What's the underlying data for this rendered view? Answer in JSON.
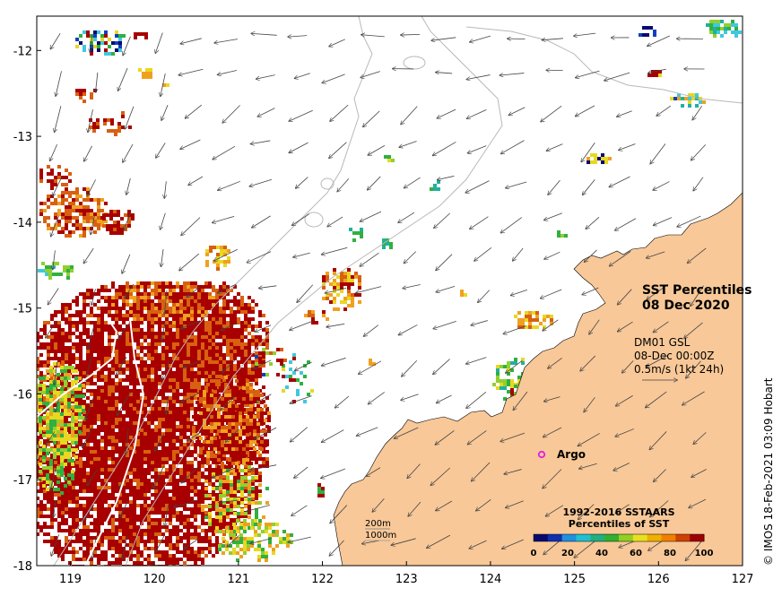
{
  "map": {
    "x_axis": {
      "min": 118.6,
      "max": 127,
      "ticks": [
        "119",
        "120",
        "121",
        "122",
        "123",
        "124",
        "125",
        "126",
        "127"
      ]
    },
    "y_axis": {
      "min": -18,
      "max": -11.6,
      "ticks": [
        "-12",
        "-13",
        "-14",
        "-15",
        "-16",
        "-17",
        "-18"
      ]
    },
    "title_line1": "SST Percentiles",
    "title_line2": "08 Dec 2020",
    "current_info": {
      "line1": "DM01 GSL",
      "line2": "08-Dec 00:00Z",
      "line3": "0.5m/s (1kt 24h)"
    },
    "argo_label": "Argo",
    "contour_legend": {
      "line1": "200m",
      "line2": "1000m"
    },
    "colorbar": {
      "title_line1": "1992-2016 SSTAARS",
      "title_line2": "Percentiles of SST",
      "labels": [
        "0",
        "20",
        "40",
        "60",
        "80",
        "100"
      ],
      "colors": [
        "#0a0a6e",
        "#1030b0",
        "#2090e0",
        "#20c0d0",
        "#20b080",
        "#30b030",
        "#90d020",
        "#e8e020",
        "#f0b000",
        "#f08000",
        "#d04000",
        "#a00000"
      ]
    },
    "credit": "© IMOS 18-Feb-2021 03:09 Hobart",
    "land_color": "#f8c898",
    "sst_palette": {
      "hot": "#a80000",
      "orange": "#d86010",
      "amber": "#f0a020",
      "yellow": "#e8d820",
      "lime": "#90d030",
      "green": "#30b040",
      "teal": "#20b0a0",
      "cyan": "#40c8e0",
      "blue": "#1040c0",
      "navy": "#0a0a6e"
    }
  }
}
